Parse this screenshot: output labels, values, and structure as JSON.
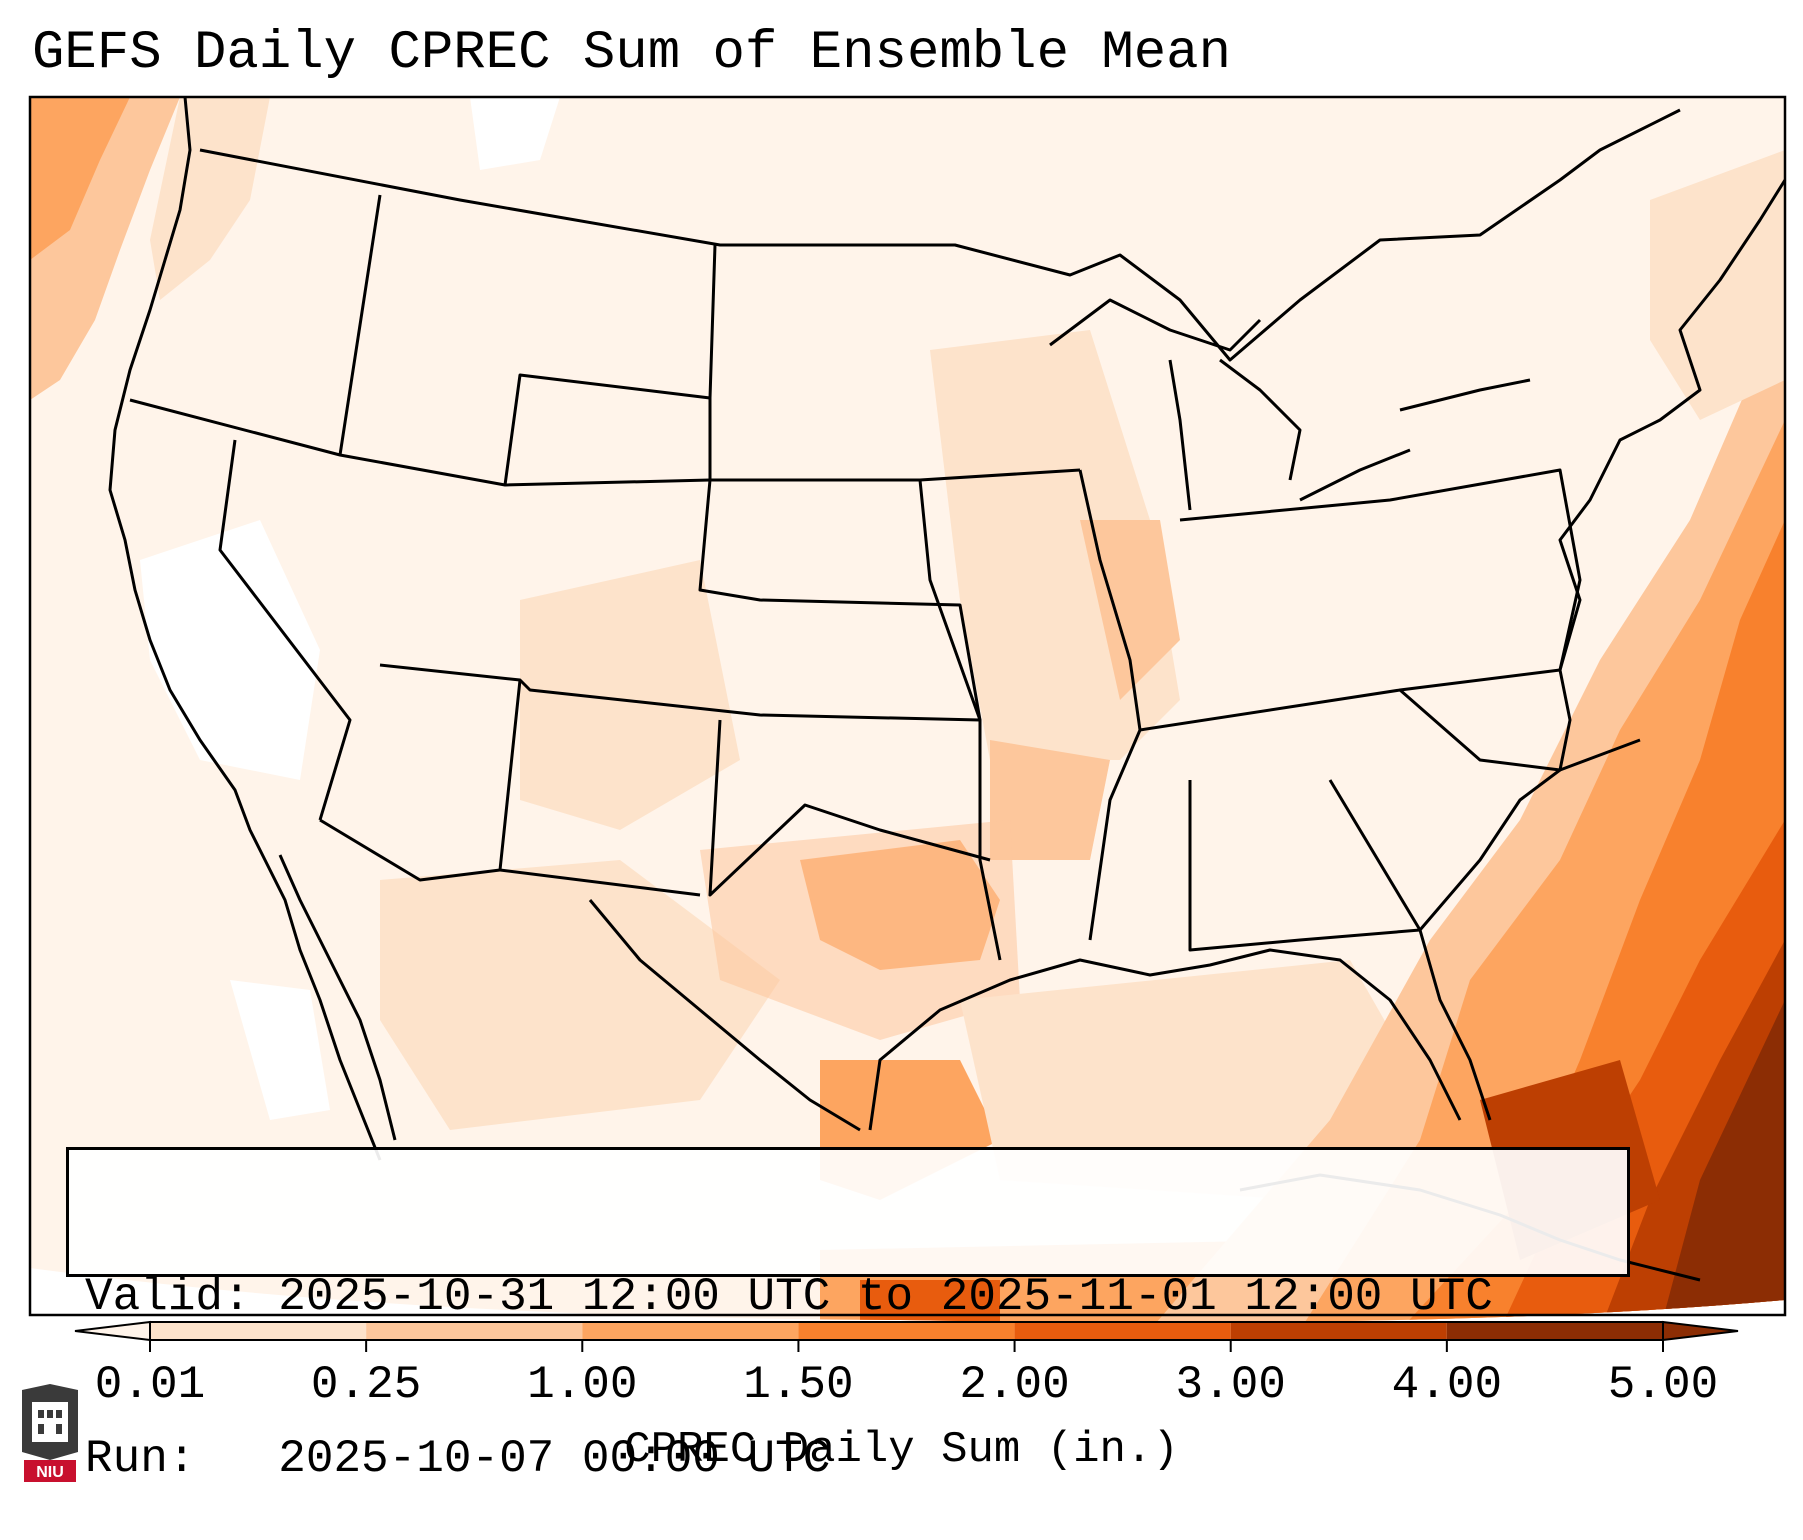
{
  "title": "GEFS Daily CPREC Sum of Ensemble Mean",
  "info": {
    "valid_line": "Valid: 2025-10-31 12:00 UTC to 2025-11-01 12:00 UTC",
    "run_line": "Run:   2025-10-07 00:00 UTC"
  },
  "colorbar": {
    "label": "CPREC Daily Sum (in.)",
    "ticks": [
      "0.01",
      "0.25",
      "1.00",
      "1.50",
      "2.00",
      "3.00",
      "4.00",
      "5.00"
    ],
    "colors": [
      "#fff4ea",
      "#fde3cb",
      "#fdc79c",
      "#fda560",
      "#f8812d",
      "#e85c0e",
      "#bd3f02",
      "#8c2d04"
    ],
    "extend": "both"
  },
  "map": {
    "region": "Contiguous United States",
    "colormap": "Oranges",
    "grid": false
  },
  "logo": {
    "text": "NIU",
    "color": "#c8102e"
  }
}
